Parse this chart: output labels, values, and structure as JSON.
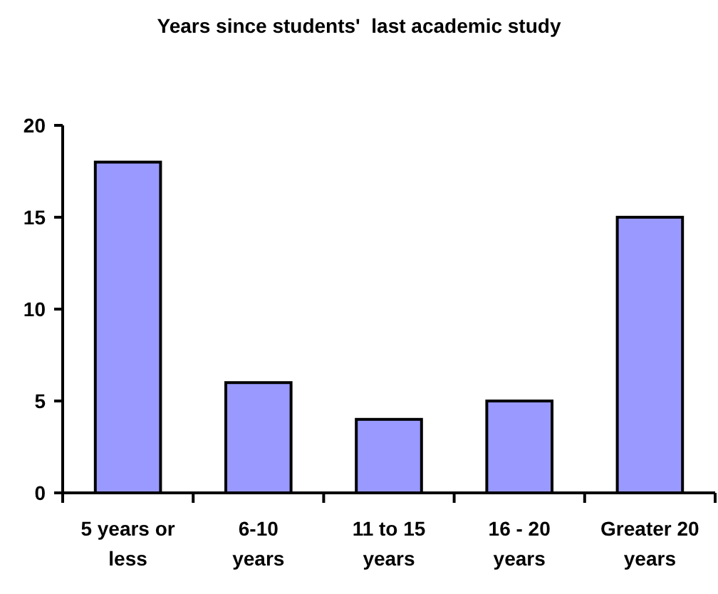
{
  "chart_data": {
    "type": "bar",
    "title": "Years since students'  last academic study",
    "categories": [
      "5 years or less",
      "6-10 years",
      "11 to 15 years",
      "16 - 20 years",
      "Greater 20 years"
    ],
    "values": [
      18,
      6,
      4,
      5,
      15
    ],
    "color": "#9999ff",
    "ylim": [
      0,
      20
    ],
    "yticks": [
      0,
      5,
      10,
      15,
      20
    ],
    "grid": false
  }
}
